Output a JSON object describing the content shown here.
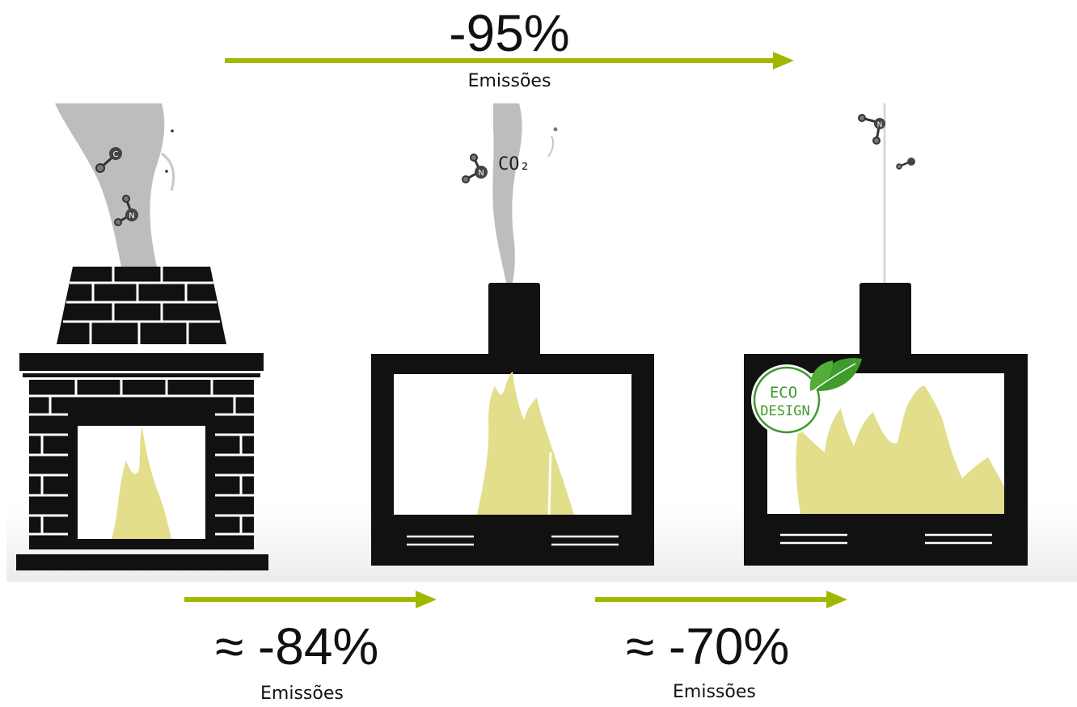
{
  "top": {
    "value": "-95%",
    "caption": "Emissões"
  },
  "bottom_left": {
    "value": "≈ -84%",
    "caption": "Emissões"
  },
  "bottom_right": {
    "value": "≈ -70%",
    "caption": "Emissões"
  },
  "smoke_label_middle": "CO₂",
  "badge": {
    "line1": "ECO",
    "line2": "DESIGN"
  },
  "molecules": {
    "left_carbon": "C",
    "left_nitrogen": "N",
    "middle_nitrogen": "N",
    "right_nitrogen": "N"
  },
  "colors": {
    "arrow": "#a2b800",
    "flame": "#e3de8b",
    "stove": "#111111",
    "smoke": "#bdbdbd",
    "badge_green": "#3f9b2b"
  }
}
